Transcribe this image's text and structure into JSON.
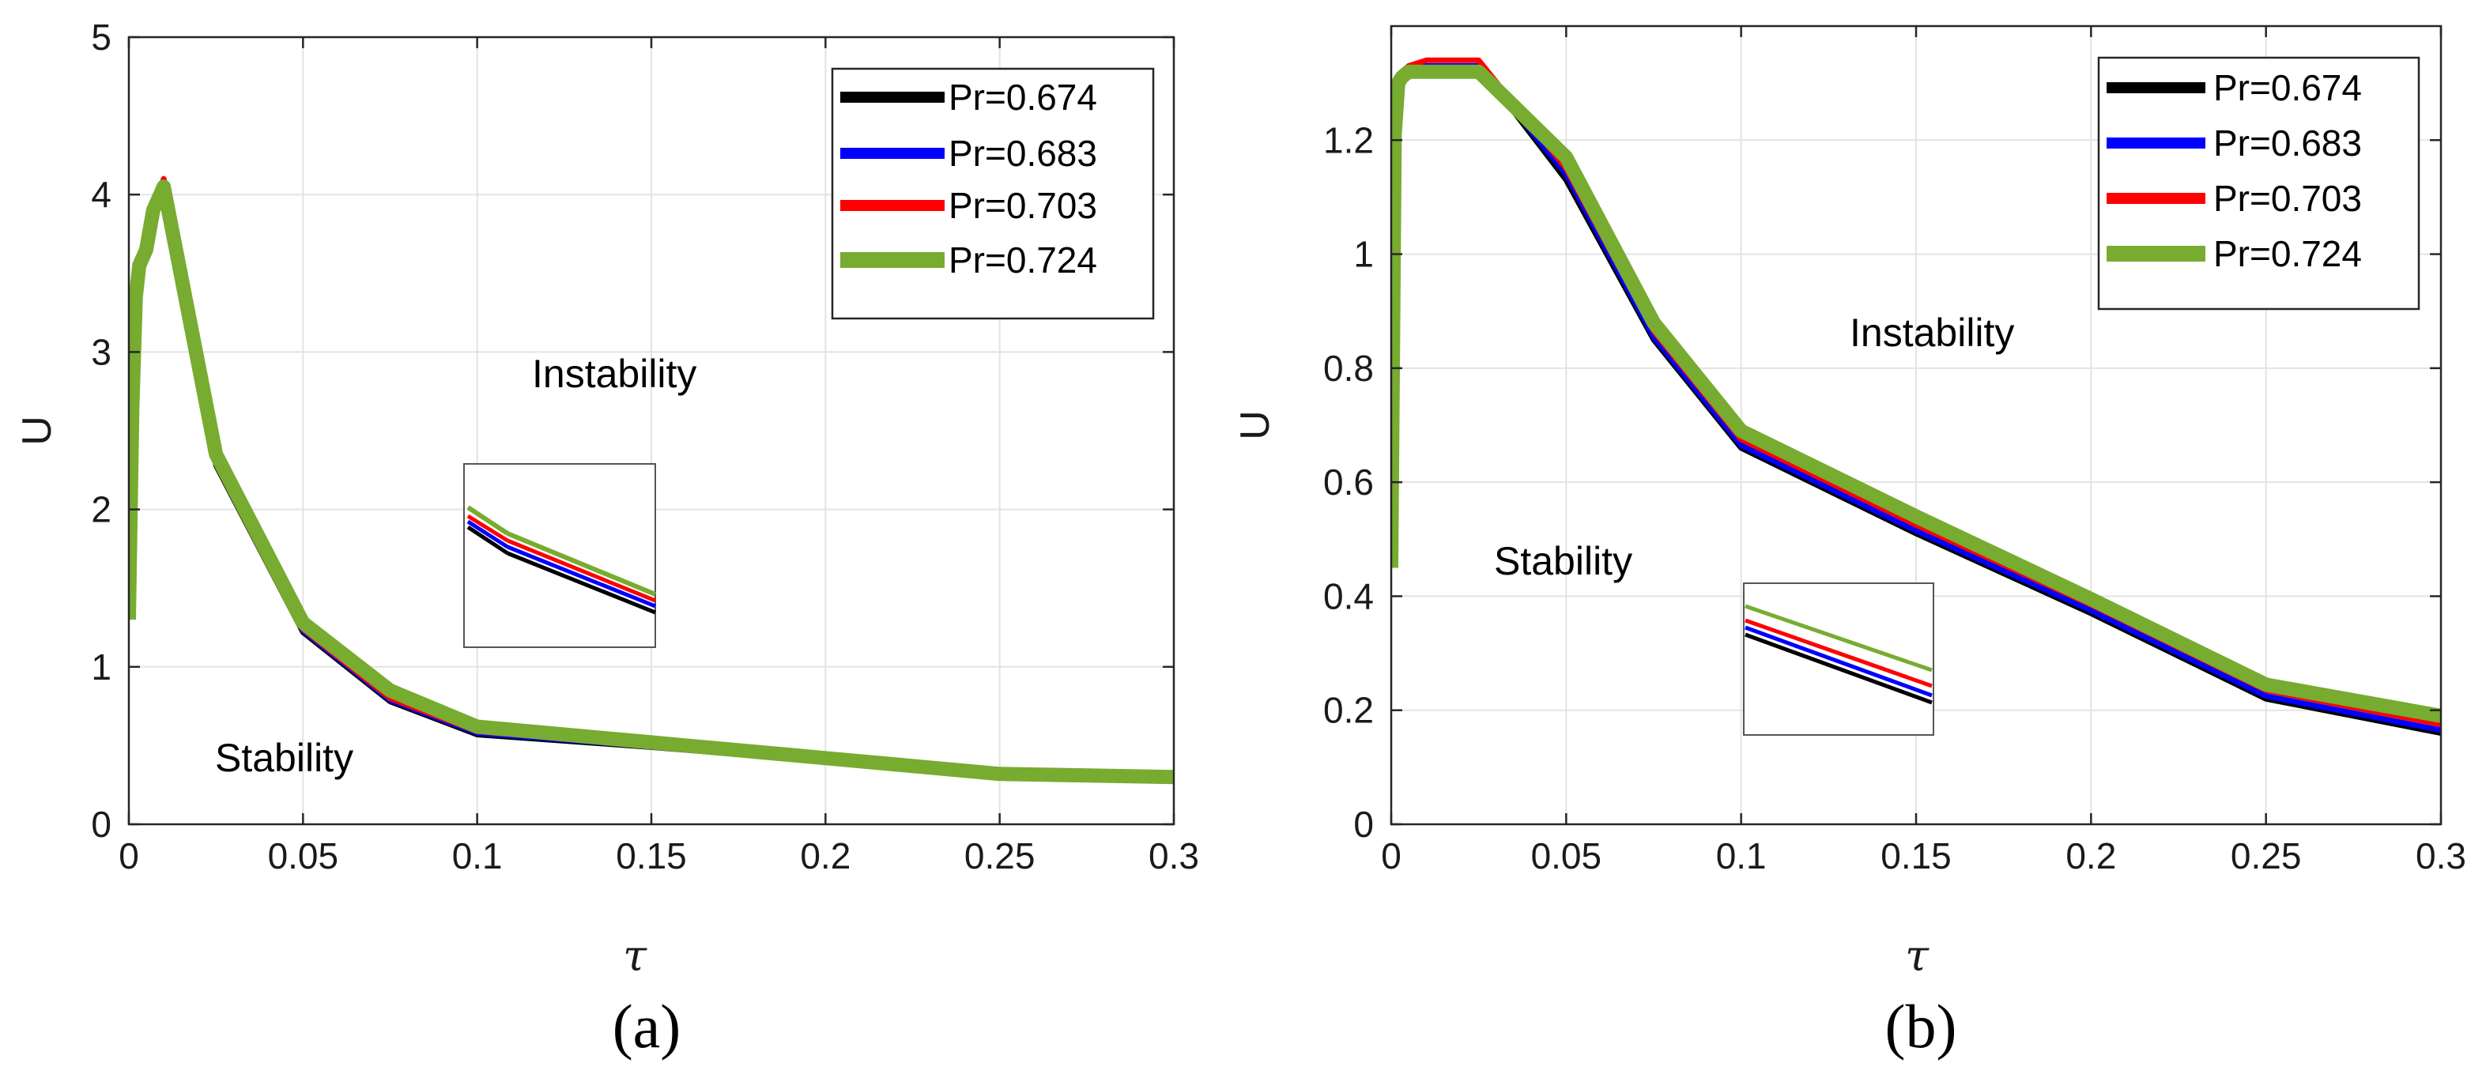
{
  "figure": {
    "caption_a": "(a)",
    "caption_b": "(b)"
  },
  "chart_data": [
    {
      "type": "line",
      "panel": "(a)",
      "xlabel": "τ",
      "ylabel": "U",
      "xlim": [
        0,
        0.3
      ],
      "ylim": [
        0,
        5
      ],
      "xticks": [
        0,
        0.05,
        0.1,
        0.15,
        0.2,
        0.25,
        0.3
      ],
      "xtick_labels": [
        "0",
        "0.05",
        "0.1",
        "0.15",
        "0.2",
        "0.25",
        "0.3"
      ],
      "yticks": [
        0,
        1,
        2,
        3,
        4,
        5
      ],
      "ytick_labels": [
        "0",
        "1",
        "2",
        "3",
        "4",
        "5"
      ],
      "grid": true,
      "legend_position": "top-right",
      "annotations": [
        "Instability",
        "Stability"
      ],
      "x": [
        0,
        0.001,
        0.002,
        0.003,
        0.005,
        0.007,
        0.01,
        0.025,
        0.05,
        0.075,
        0.1,
        0.15,
        0.2,
        0.25,
        0.3
      ],
      "series": [
        {
          "name": "Pr=0.674",
          "color": "#000000",
          "values": [
            1.3,
            2.6,
            3.3,
            3.5,
            3.6,
            3.85,
            4.08,
            2.28,
            1.22,
            0.78,
            0.57,
            0.49,
            0.4,
            0.31,
            0.29
          ]
        },
        {
          "name": "Pr=0.683",
          "color": "#0000ff",
          "values": [
            1.3,
            2.62,
            3.32,
            3.52,
            3.62,
            3.87,
            4.1,
            2.3,
            1.23,
            0.79,
            0.58,
            0.495,
            0.405,
            0.31,
            0.29
          ]
        },
        {
          "name": "Pr=0.703",
          "color": "#ff0000",
          "values": [
            1.3,
            2.64,
            3.34,
            3.54,
            3.64,
            3.88,
            4.1,
            2.31,
            1.24,
            0.8,
            0.59,
            0.5,
            0.41,
            0.315,
            0.29
          ]
        },
        {
          "name": "Pr=0.724",
          "color": "#77ac30",
          "values": [
            1.3,
            2.65,
            3.35,
            3.55,
            3.65,
            3.9,
            4.05,
            2.35,
            1.28,
            0.85,
            0.62,
            0.52,
            0.42,
            0.32,
            0.3
          ]
        }
      ]
    },
    {
      "type": "line",
      "panel": "(b)",
      "xlabel": "τ",
      "ylabel": "U",
      "xlim": [
        0,
        0.3
      ],
      "ylim": [
        0,
        1.4
      ],
      "xticks": [
        0,
        0.05,
        0.1,
        0.15,
        0.2,
        0.25,
        0.3
      ],
      "xtick_labels": [
        "0",
        "0.05",
        "0.1",
        "0.15",
        "0.2",
        "0.25",
        "0.3"
      ],
      "yticks": [
        0,
        0.2,
        0.4,
        0.6,
        0.8,
        1.0,
        1.2
      ],
      "ytick_labels": [
        "0",
        "0.2",
        "0.4",
        "0.6",
        "0.8",
        "1",
        "1.2"
      ],
      "grid": true,
      "legend_position": "top-right",
      "annotations": [
        "Instability",
        "Stability"
      ],
      "x": [
        0,
        0.001,
        0.002,
        0.003,
        0.005,
        0.01,
        0.025,
        0.05,
        0.075,
        0.1,
        0.15,
        0.2,
        0.25,
        0.3
      ],
      "series": [
        {
          "name": "Pr=0.674",
          "color": "#000000",
          "values": [
            0.45,
            1.2,
            1.29,
            1.31,
            1.32,
            1.33,
            1.33,
            1.13,
            0.85,
            0.66,
            0.51,
            0.37,
            0.22,
            0.16
          ]
        },
        {
          "name": "Pr=0.683",
          "color": "#0000ff",
          "values": [
            0.45,
            1.2,
            1.29,
            1.31,
            1.32,
            1.33,
            1.33,
            1.14,
            0.855,
            0.665,
            0.515,
            0.375,
            0.225,
            0.165
          ]
        },
        {
          "name": "Pr=0.703",
          "color": "#ff0000",
          "values": [
            0.45,
            1.21,
            1.3,
            1.32,
            1.33,
            1.34,
            1.34,
            1.15,
            0.865,
            0.675,
            0.525,
            0.385,
            0.235,
            0.175
          ]
        },
        {
          "name": "Pr=0.724",
          "color": "#77ac30",
          "values": [
            0.45,
            1.21,
            1.3,
            1.31,
            1.32,
            1.32,
            1.32,
            1.17,
            0.88,
            0.69,
            0.54,
            0.395,
            0.245,
            0.19
          ]
        }
      ]
    }
  ]
}
